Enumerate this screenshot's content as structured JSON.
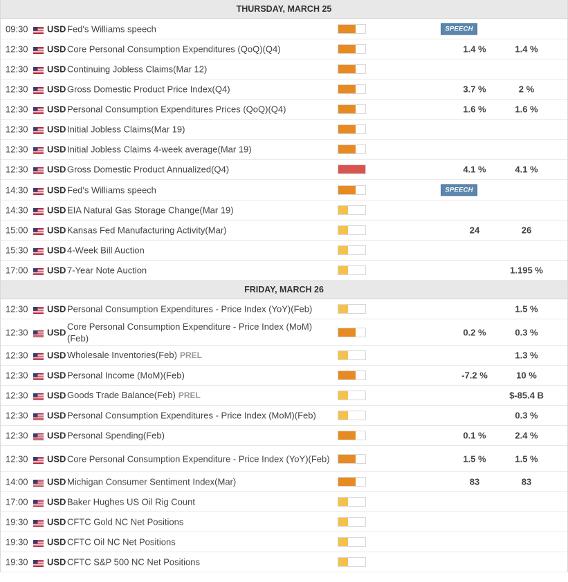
{
  "colors": {
    "impact_low": "#f4c24c",
    "impact_medium": "#e88a22",
    "impact_high": "#d9534f",
    "speech_badge": "#5b86ad"
  },
  "days": [
    {
      "title": "THURSDAY, MARCH 25",
      "events": [
        {
          "time": "09:30",
          "currency": "USD",
          "name": "Fed's Williams speech",
          "impact": "medium",
          "impact_level": 0.65,
          "badge": "SPEECH",
          "actual": "",
          "consensus": "",
          "row": "spc"
        },
        {
          "time": "12:30",
          "currency": "USD",
          "name": "Core Personal Consumption Expenditures (QoQ)(Q4)",
          "impact": "medium",
          "impact_level": 0.65,
          "actual": "1.4 %",
          "consensus": "1.4 %"
        },
        {
          "time": "12:30",
          "currency": "USD",
          "name": "Continuing Jobless Claims(Mar 12)",
          "impact": "medium",
          "impact_level": 0.65,
          "actual": "",
          "consensus": ""
        },
        {
          "time": "12:30",
          "currency": "USD",
          "name": "Gross Domestic Product Price Index(Q4)",
          "impact": "medium",
          "impact_level": 0.65,
          "actual": "3.7 %",
          "consensus": "2 %"
        },
        {
          "time": "12:30",
          "currency": "USD",
          "name": "Personal Consumption Expenditures Prices (QoQ)(Q4)",
          "impact": "medium",
          "impact_level": 0.65,
          "actual": "1.6 %",
          "consensus": "1.6 %"
        },
        {
          "time": "12:30",
          "currency": "USD",
          "name": "Initial Jobless Claims(Mar 19)",
          "impact": "medium",
          "impact_level": 0.65,
          "actual": "",
          "consensus": ""
        },
        {
          "time": "12:30",
          "currency": "USD",
          "name": "Initial Jobless Claims 4-week average(Mar 19)",
          "impact": "medium",
          "impact_level": 0.65,
          "actual": "",
          "consensus": ""
        },
        {
          "time": "12:30",
          "currency": "USD",
          "name": "Gross Domestic Product Annualized(Q4)",
          "impact": "high",
          "impact_level": 1.0,
          "actual": "4.1 %",
          "consensus": "4.1 %"
        },
        {
          "time": "14:30",
          "currency": "USD",
          "name": "Fed's Williams speech",
          "impact": "medium",
          "impact_level": 0.65,
          "badge": "SPEECH",
          "actual": "",
          "consensus": "",
          "row": "spc"
        },
        {
          "time": "14:30",
          "currency": "USD",
          "name": "EIA Natural Gas Storage Change(Mar 19)",
          "impact": "low",
          "impact_level": 0.35,
          "actual": "",
          "consensus": ""
        },
        {
          "time": "15:00",
          "currency": "USD",
          "name": "Kansas Fed Manufacturing Activity(Mar)",
          "impact": "low",
          "impact_level": 0.35,
          "actual": "24",
          "consensus": "26"
        },
        {
          "time": "15:30",
          "currency": "USD",
          "name": "4-Week Bill Auction",
          "impact": "low",
          "impact_level": 0.35,
          "actual": "",
          "consensus": ""
        },
        {
          "time": "17:00",
          "currency": "USD",
          "name": "7-Year Note Auction",
          "impact": "low",
          "impact_level": 0.35,
          "actual": "",
          "consensus": "1.195 %"
        }
      ]
    },
    {
      "title": "FRIDAY, MARCH 26",
      "events": [
        {
          "time": "12:30",
          "currency": "USD",
          "name": "Personal Consumption Expenditures - Price Index (YoY)(Feb)",
          "impact": "low",
          "impact_level": 0.35,
          "actual": "",
          "consensus": "1.5 %"
        },
        {
          "time": "12:30",
          "currency": "USD",
          "name": "Core Personal Consumption Expenditure - Price Index (MoM)(Feb)",
          "impact": "medium",
          "impact_level": 0.65,
          "actual": "0.2 %",
          "consensus": "0.3 %",
          "row": "tall"
        },
        {
          "time": "12:30",
          "currency": "USD",
          "name": "Wholesale Inventories(Feb)",
          "tag": "PREL",
          "impact": "low",
          "impact_level": 0.35,
          "actual": "",
          "consensus": "1.3 %"
        },
        {
          "time": "12:30",
          "currency": "USD",
          "name": "Personal Income (MoM)(Feb)",
          "impact": "medium",
          "impact_level": 0.65,
          "actual": "-7.2 %",
          "consensus": "10 %"
        },
        {
          "time": "12:30",
          "currency": "USD",
          "name": "Goods Trade Balance(Feb)",
          "tag": "PREL",
          "impact": "low",
          "impact_level": 0.35,
          "actual": "",
          "consensus": "$-85.4 B"
        },
        {
          "time": "12:30",
          "currency": "USD",
          "name": "Personal Consumption Expenditures - Price Index (MoM)(Feb)",
          "impact": "low",
          "impact_level": 0.35,
          "actual": "",
          "consensus": "0.3 %"
        },
        {
          "time": "12:30",
          "currency": "USD",
          "name": "Personal Spending(Feb)",
          "impact": "medium",
          "impact_level": 0.65,
          "actual": "0.1 %",
          "consensus": "2.4 %"
        },
        {
          "time": "12:30",
          "currency": "USD",
          "name": "Core Personal Consumption Expenditure - Price Index (YoY)(Feb)",
          "impact": "medium",
          "impact_level": 0.65,
          "actual": "1.5 %",
          "consensus": "1.5 %",
          "row": "tall"
        },
        {
          "time": "14:00",
          "currency": "USD",
          "name": "Michigan Consumer Sentiment Index(Mar)",
          "impact": "medium",
          "impact_level": 0.65,
          "actual": "83",
          "consensus": "83"
        },
        {
          "time": "17:00",
          "currency": "USD",
          "name": "Baker Hughes US Oil Rig Count",
          "impact": "low",
          "impact_level": 0.35,
          "actual": "",
          "consensus": ""
        },
        {
          "time": "19:30",
          "currency": "USD",
          "name": "CFTC Gold NC Net Positions",
          "impact": "low",
          "impact_level": 0.35,
          "actual": "",
          "consensus": ""
        },
        {
          "time": "19:30",
          "currency": "USD",
          "name": "CFTC Oil NC Net Positions",
          "impact": "low",
          "impact_level": 0.35,
          "actual": "",
          "consensus": ""
        },
        {
          "time": "19:30",
          "currency": "USD",
          "name": "CFTC S&P 500 NC Net Positions",
          "impact": "low",
          "impact_level": 0.35,
          "actual": "",
          "consensus": ""
        }
      ]
    }
  ]
}
